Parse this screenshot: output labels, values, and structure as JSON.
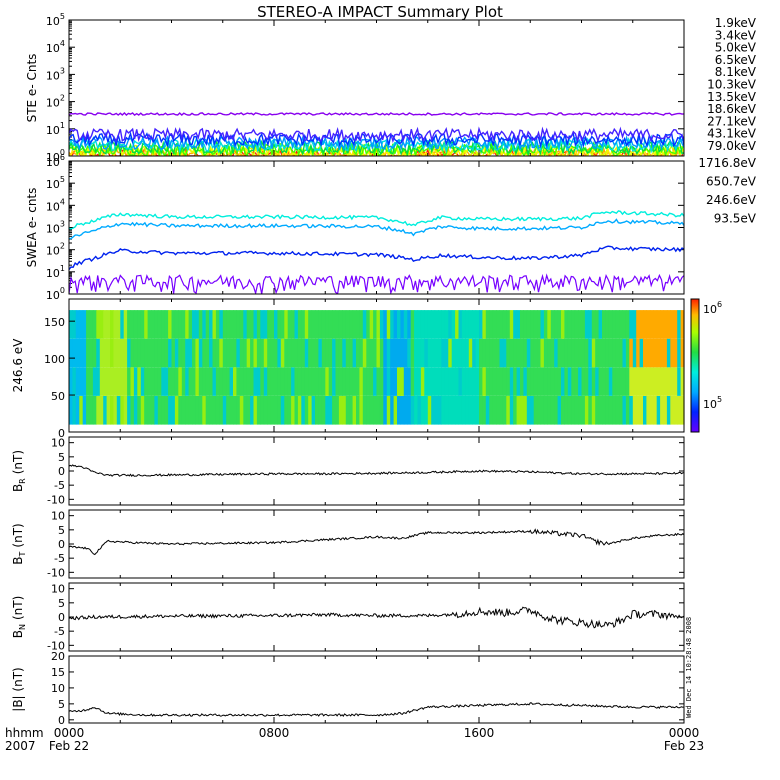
{
  "title": "STEREO-A IMPACT Summary Plot",
  "stamp": "Wed Dec 14 10:28:48 2008",
  "time_axis": {
    "corner_labels": [
      "hhmm",
      "2007"
    ],
    "ticks": [
      {
        "x": 0,
        "top": "0000",
        "bottom": "Feb 22"
      },
      {
        "x": 8,
        "top": "0800",
        "bottom": ""
      },
      {
        "x": 16,
        "top": "1600",
        "bottom": ""
      },
      {
        "x": 24,
        "top": "0000",
        "bottom": "Feb 23"
      }
    ]
  },
  "colors": {
    "s1": "#8800ee",
    "s2": "#4422ff",
    "s3": "#0033ff",
    "s4": "#0099ff",
    "s5": "#00dddd",
    "s6": "#00dd44",
    "s7": "#44ff00",
    "s8": "#ddff00",
    "s9": "#ffee00",
    "s10": "#ffaa00",
    "s11": "#ff2200",
    "w1": "#7700ff",
    "w2": "#0022ee",
    "w3": "#00aaff",
    "w4": "#00eedd"
  },
  "chart_data": [
    {
      "id": "ste",
      "type": "line",
      "ylabel": "STE e- Cnts",
      "yscale": "log",
      "ylim": [
        1,
        100000
      ],
      "yticks": [
        {
          "base": "10",
          "exp": "0"
        },
        {
          "base": "10",
          "exp": "1"
        },
        {
          "base": "10",
          "exp": "2"
        },
        {
          "base": "10",
          "exp": "3"
        },
        {
          "base": "10",
          "exp": "4"
        },
        {
          "base": "10",
          "exp": "5"
        }
      ],
      "series": [
        {
          "name": "1.9keV",
          "color": "#8800ee",
          "level": 35
        },
        {
          "name": "3.4keV",
          "color": "#4422ff",
          "level": 6
        },
        {
          "name": "5.0keV",
          "color": "#0033ff",
          "level": 4
        },
        {
          "name": "6.5keV",
          "color": "#0099ff",
          "level": 3
        },
        {
          "name": "8.1keV",
          "color": "#00dddd",
          "level": 2.5
        },
        {
          "name": "10.3keV",
          "color": "#00dd44",
          "level": 2
        },
        {
          "name": "13.5keV",
          "color": "#44ff00",
          "level": 1.7
        },
        {
          "name": "18.6keV",
          "color": "#ddff00",
          "level": 1.5
        },
        {
          "name": "27.1keV",
          "color": "#ffee00",
          "level": 1.3
        },
        {
          "name": "43.1keV",
          "color": "#ffaa00",
          "level": 1.15
        },
        {
          "name": "79.0keV",
          "color": "#ff2200",
          "level": 1.05
        }
      ]
    },
    {
      "id": "swea",
      "type": "line",
      "ylabel": "SWEA e- cnts",
      "yscale": "log",
      "ylim": [
        1,
        1000000
      ],
      "yticks": [
        {
          "base": "10",
          "exp": "0"
        },
        {
          "base": "10",
          "exp": "1"
        },
        {
          "base": "10",
          "exp": "2"
        },
        {
          "base": "10",
          "exp": "3"
        },
        {
          "base": "10",
          "exp": "4"
        },
        {
          "base": "10",
          "exp": "5"
        },
        {
          "base": "10",
          "exp": "6"
        }
      ],
      "series": [
        {
          "name": "1716.8eV",
          "color": "#7700ff",
          "x": [
            0,
            24
          ],
          "y": [
            3,
            3
          ]
        },
        {
          "name": "650.7eV",
          "color": "#0022ee",
          "x": [
            0,
            1,
            2,
            4,
            8,
            12,
            13.5,
            14.5,
            16,
            18,
            20,
            21,
            22,
            24
          ],
          "y": [
            15,
            40,
            90,
            70,
            70,
            60,
            35,
            55,
            45,
            40,
            55,
            120,
            110,
            100
          ]
        },
        {
          "name": "246.6eV",
          "color": "#00aaff",
          "x": [
            0,
            1,
            2,
            4,
            8,
            12,
            13.5,
            14.5,
            16,
            18,
            20,
            21,
            22,
            24
          ],
          "y": [
            300,
            700,
            1500,
            1200,
            1200,
            1100,
            500,
            1100,
            900,
            900,
            1000,
            2000,
            1800,
            1500
          ]
        },
        {
          "name": "93.5eV",
          "color": "#00eedd",
          "x": [
            0,
            1,
            2,
            4,
            8,
            12,
            13.5,
            14.5,
            16,
            18,
            20,
            21,
            22,
            24
          ],
          "y": [
            900,
            2000,
            4000,
            3000,
            3000,
            2800,
            1200,
            2800,
            2400,
            2400,
            2600,
            5000,
            4500,
            3500
          ]
        }
      ]
    },
    {
      "id": "pad",
      "type": "heatmap",
      "ylabel": "246.6 eV",
      "ylim": [
        0,
        180
      ],
      "yticks": [
        "0",
        "50",
        "100",
        "150"
      ],
      "colorbar": {
        "scale": "log",
        "labels": [
          {
            "base": "10",
            "exp": "5"
          },
          {
            "base": "10",
            "exp": "6"
          }
        ]
      }
    },
    {
      "id": "br",
      "type": "line",
      "ylabel": "B",
      "ysub": "R",
      "yunit": "(nT)",
      "ylim": [
        -12,
        12
      ],
      "yticks": [
        "-10",
        "-5",
        "0",
        "5",
        "10"
      ],
      "x": [
        0,
        0.5,
        1,
        1.5,
        3,
        6,
        8,
        10,
        12,
        14,
        16,
        18,
        20,
        22,
        24
      ],
      "y": [
        2,
        1.5,
        -0.5,
        -1.5,
        -1.5,
        -1.2,
        -1,
        -1,
        -0.8,
        -0.5,
        0,
        -0.3,
        -1,
        -1,
        -0.8
      ]
    },
    {
      "id": "bt",
      "type": "line",
      "ylabel": "B",
      "ysub": "T",
      "yunit": "(nT)",
      "ylim": [
        -12,
        12
      ],
      "yticks": [
        "-10",
        "-5",
        "0",
        "5",
        "10"
      ],
      "x": [
        0,
        0.7,
        1,
        1.5,
        2.5,
        4,
        8,
        10,
        12,
        13,
        14,
        16,
        18,
        20,
        20.5,
        21,
        22,
        23,
        24
      ],
      "y": [
        -1,
        -1.5,
        -3.5,
        1,
        0.5,
        0,
        0.5,
        1.5,
        2.5,
        2,
        4,
        4,
        4.5,
        3,
        1,
        0,
        2,
        3,
        3.5
      ]
    },
    {
      "id": "bn",
      "type": "line",
      "ylabel": "B",
      "ysub": "N",
      "yunit": "(nT)",
      "ylim": [
        -12,
        12
      ],
      "yticks": [
        "-10",
        "-5",
        "0",
        "5",
        "10"
      ],
      "x": [
        0,
        1,
        4,
        8,
        10,
        12,
        14,
        15,
        16,
        17,
        18,
        18.5,
        19,
        20,
        21,
        21.5,
        22,
        23,
        24
      ],
      "y": [
        -0.5,
        0,
        0.3,
        0.5,
        0.8,
        0.5,
        0.5,
        1,
        2,
        1.5,
        2.5,
        0.5,
        -1,
        -2,
        -3,
        -1.5,
        1,
        1,
        0
      ]
    },
    {
      "id": "bmag",
      "type": "line",
      "ylabel": "|B| (nT)",
      "ylim": [
        -1,
        20
      ],
      "yticks": [
        "0",
        "5",
        "10",
        "15",
        "20"
      ],
      "x": [
        0,
        0.6,
        1,
        1.5,
        3,
        6,
        8,
        10,
        12,
        13,
        14,
        16,
        18,
        20,
        22,
        24
      ],
      "y": [
        2.5,
        3,
        4,
        2,
        1.5,
        1.5,
        1.5,
        1.5,
        1.5,
        2,
        4,
        4.5,
        5,
        4.5,
        4,
        4
      ]
    }
  ]
}
